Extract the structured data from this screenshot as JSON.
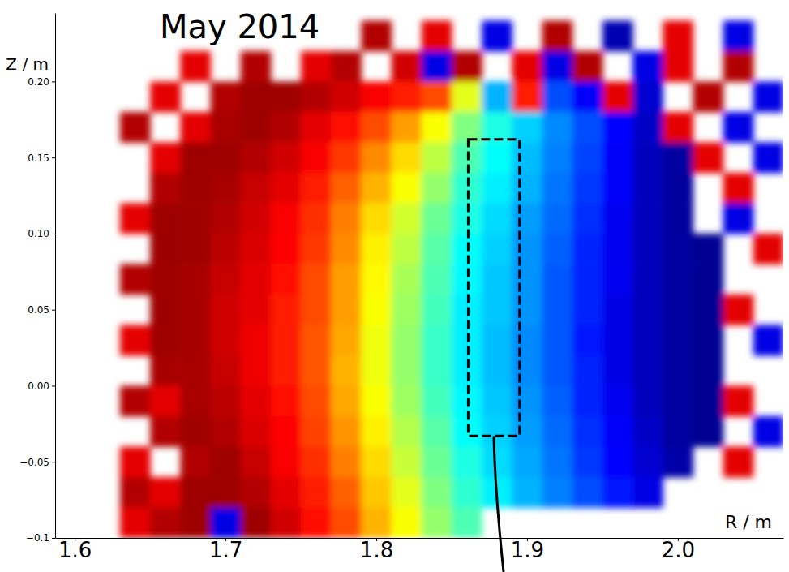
{
  "chart_data": {
    "type": "heatmap",
    "title": "May 2014",
    "x_label": "R / m",
    "y_label": "Z / m",
    "x": [
      1.64,
      1.66,
      1.68,
      1.7,
      1.72,
      1.74,
      1.76,
      1.78,
      1.8,
      1.82,
      1.84,
      1.86,
      1.88,
      1.9,
      1.92,
      1.94,
      1.96,
      1.98,
      2.0,
      2.02,
      2.04,
      2.06
    ],
    "y": [
      0.23,
      0.21,
      0.19,
      0.17,
      0.15,
      0.13,
      0.11,
      0.09,
      0.07,
      0.05,
      0.03,
      0.01,
      -0.01,
      -0.03,
      -0.05,
      -0.07,
      -0.09
    ],
    "z": [
      [
        null,
        null,
        null,
        null,
        null,
        null,
        null,
        null,
        0.95,
        null,
        0.9,
        null,
        0.1,
        null,
        0.95,
        null,
        0.05,
        null,
        0.9,
        null,
        0.1,
        null
      ],
      [
        null,
        null,
        0.9,
        null,
        0.95,
        null,
        0.9,
        0.95,
        null,
        0.92,
        0.1,
        0.95,
        null,
        0.9,
        0.1,
        0.95,
        null,
        0.1,
        0.9,
        null,
        0.95,
        null
      ],
      [
        null,
        0.9,
        null,
        0.95,
        0.97,
        0.97,
        0.95,
        0.92,
        0.88,
        0.85,
        0.8,
        0.6,
        0.3,
        0.85,
        0.2,
        0.12,
        0.9,
        0.08,
        null,
        0.95,
        null,
        0.1
      ],
      [
        0.95,
        null,
        0.9,
        0.96,
        0.97,
        0.95,
        0.9,
        0.86,
        0.8,
        0.72,
        0.62,
        0.5,
        0.4,
        0.33,
        0.26,
        0.2,
        0.13,
        0.07,
        0.9,
        null,
        0.1,
        null
      ],
      [
        null,
        0.9,
        0.97,
        0.97,
        0.95,
        0.92,
        0.88,
        0.82,
        0.74,
        0.66,
        0.56,
        0.45,
        0.38,
        0.31,
        0.25,
        0.19,
        0.12,
        0.06,
        0.03,
        0.9,
        null,
        0.1
      ],
      [
        null,
        0.95,
        0.97,
        0.96,
        0.93,
        0.9,
        0.85,
        0.78,
        0.7,
        0.62,
        0.52,
        0.42,
        0.36,
        0.3,
        0.24,
        0.18,
        0.12,
        0.06,
        0.03,
        null,
        0.9,
        null
      ],
      [
        0.9,
        0.97,
        0.97,
        0.95,
        0.92,
        0.88,
        0.83,
        0.75,
        0.66,
        0.58,
        0.48,
        0.4,
        0.34,
        0.28,
        0.23,
        0.17,
        0.11,
        0.06,
        0.03,
        null,
        0.1,
        null
      ],
      [
        null,
        0.97,
        0.97,
        0.94,
        0.91,
        0.87,
        0.82,
        0.74,
        0.64,
        0.56,
        0.46,
        0.38,
        0.33,
        0.27,
        0.22,
        0.16,
        0.11,
        0.06,
        0.03,
        0.02,
        null,
        0.9
      ],
      [
        0.95,
        0.97,
        0.96,
        0.93,
        0.9,
        0.86,
        0.8,
        0.72,
        0.63,
        0.54,
        0.45,
        0.37,
        0.32,
        0.27,
        0.21,
        0.16,
        0.11,
        0.06,
        0.03,
        0.02,
        null,
        null
      ],
      [
        null,
        0.97,
        0.96,
        0.92,
        0.9,
        0.85,
        0.8,
        0.72,
        0.62,
        0.53,
        0.44,
        0.36,
        0.32,
        0.27,
        0.21,
        0.16,
        0.1,
        0.06,
        0.03,
        0.02,
        0.9,
        null
      ],
      [
        0.9,
        0.97,
        0.96,
        0.92,
        0.89,
        0.85,
        0.79,
        0.71,
        0.61,
        0.52,
        0.43,
        0.36,
        0.31,
        0.26,
        0.21,
        0.15,
        0.1,
        0.06,
        0.03,
        0.02,
        null,
        0.1
      ],
      [
        null,
        0.96,
        0.96,
        0.93,
        0.89,
        0.85,
        0.79,
        0.7,
        0.61,
        0.52,
        0.43,
        0.36,
        0.31,
        0.26,
        0.21,
        0.16,
        0.1,
        0.06,
        0.03,
        0.02,
        null,
        null
      ],
      [
        0.95,
        0.9,
        0.96,
        0.94,
        0.9,
        0.86,
        0.8,
        0.71,
        0.62,
        0.53,
        0.44,
        0.37,
        0.32,
        0.27,
        0.22,
        0.16,
        0.11,
        0.06,
        0.03,
        0.02,
        0.9,
        null
      ],
      [
        null,
        0.95,
        0.97,
        0.95,
        0.91,
        0.87,
        0.81,
        0.73,
        0.64,
        0.55,
        0.46,
        0.38,
        0.33,
        0.28,
        0.23,
        0.17,
        0.12,
        0.07,
        0.03,
        0.02,
        null,
        0.1
      ],
      [
        0.9,
        null,
        0.95,
        0.97,
        0.93,
        0.88,
        0.83,
        0.75,
        0.66,
        0.57,
        0.48,
        0.4,
        0.34,
        0.29,
        0.24,
        0.18,
        0.13,
        0.08,
        0.04,
        null,
        0.9,
        null
      ],
      [
        0.95,
        0.9,
        0.97,
        0.97,
        0.95,
        0.9,
        0.85,
        0.78,
        0.68,
        0.6,
        0.5,
        0.42,
        0.36,
        0.3,
        0.25,
        0.2,
        0.15,
        0.1,
        null,
        null,
        null,
        null
      ],
      [
        0.9,
        0.95,
        0.97,
        0.1,
        0.97,
        0.92,
        0.86,
        0.8,
        0.7,
        0.62,
        0.52,
        0.45,
        null,
        null,
        null,
        null,
        null,
        null,
        null,
        null,
        null,
        null
      ]
    ],
    "zlim": [
      0,
      1
    ],
    "xlim": [
      1.587,
      2.07
    ],
    "ylim": [
      -0.1,
      0.245
    ],
    "xticks": [
      1.6,
      1.7,
      1.8,
      1.9,
      {
        "value": 2,
        "label": "2.0"
      }
    ],
    "yticks": [
      {
        "value": 0.2,
        "label": "0.20"
      },
      0.15,
      {
        "value": 0.1,
        "label": "0.10"
      },
      0.05,
      {
        "value": 0,
        "label": "0.00"
      },
      {
        "value": -0.05,
        "label": "−0.05"
      },
      {
        "value": -0.1,
        "label": "−0.1"
      }
    ],
    "highlight": {
      "xlim": [
        1.861,
        1.895
      ],
      "ylim": [
        -0.033,
        0.162
      ]
    }
  }
}
